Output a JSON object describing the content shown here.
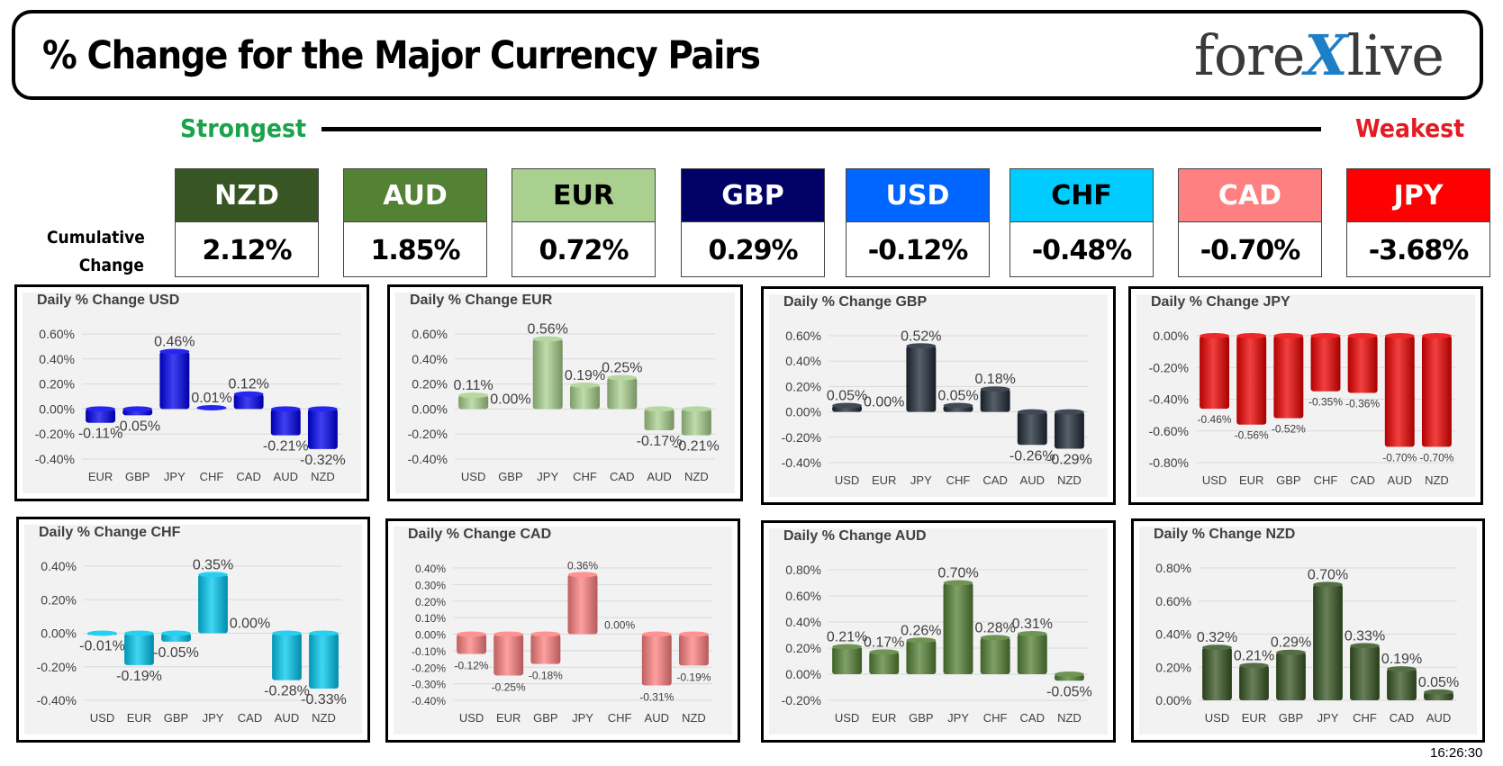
{
  "header": {
    "title": "% Change for the Major Currency Pairs",
    "logo_prefix": "fore",
    "logo_x": "X",
    "logo_suffix": "live"
  },
  "ranking": {
    "strongest_label": "Strongest",
    "weakest_label": "Weakest",
    "cumulative_label_line1": "Cumulative",
    "cumulative_label_line2": "Change",
    "tiles": [
      {
        "currency": "NZD",
        "value": "2.12%",
        "color": "#375623",
        "text_color": "#ffffff"
      },
      {
        "currency": "AUD",
        "value": "1.85%",
        "color": "#548235",
        "text_color": "#ffffff"
      },
      {
        "currency": "EUR",
        "value": "0.72%",
        "color": "#a9d08e",
        "text_color": "#000000"
      },
      {
        "currency": "GBP",
        "value": "0.29%",
        "color": "#000066",
        "text_color": "#ffffff"
      },
      {
        "currency": "USD",
        "value": "-0.12%",
        "color": "#0066ff",
        "text_color": "#ffffff"
      },
      {
        "currency": "CHF",
        "value": "-0.48%",
        "color": "#00ccff",
        "text_color": "#000000"
      },
      {
        "currency": "CAD",
        "value": "-0.70%",
        "color": "#ff8080",
        "text_color": "#ffffff"
      },
      {
        "currency": "JPY",
        "value": "-3.68%",
        "color": "#ff0000",
        "text_color": "#ffffff"
      }
    ]
  },
  "timestamp": "16:26:30",
  "chart_data": [
    {
      "type": "bar",
      "title": "Daily % Change USD",
      "categories": [
        "EUR",
        "GBP",
        "JPY",
        "CHF",
        "CAD",
        "AUD",
        "NZD"
      ],
      "values": [
        -0.11,
        -0.05,
        0.46,
        0.01,
        0.12,
        -0.21,
        -0.32
      ],
      "labels": [
        "-0.11%",
        "-0.05%",
        "0.46%",
        "0.01%",
        "0.12%",
        "-0.21%",
        "-0.32%"
      ],
      "ylim": [
        -0.4,
        0.6
      ],
      "yticks": [
        0.6,
        0.4,
        0.2,
        0.0,
        -0.2,
        -0.4
      ],
      "ytick_labels": [
        "0.60%",
        "0.40%",
        "0.20%",
        "0.00%",
        "-0.20%",
        "-0.40%"
      ],
      "color": "#0000ee"
    },
    {
      "type": "bar",
      "title": "Daily % Change EUR",
      "categories": [
        "USD",
        "GBP",
        "JPY",
        "CHF",
        "CAD",
        "AUD",
        "NZD"
      ],
      "values": [
        0.11,
        0.0,
        0.56,
        0.19,
        0.25,
        -0.17,
        -0.21
      ],
      "labels": [
        "0.11%",
        "0.00%",
        "0.56%",
        "0.19%",
        "0.25%",
        "-0.17%",
        "-0.21%"
      ],
      "ylim": [
        -0.4,
        0.6
      ],
      "yticks": [
        0.6,
        0.4,
        0.2,
        0.0,
        -0.2,
        -0.4
      ],
      "ytick_labels": [
        "0.60%",
        "0.40%",
        "0.20%",
        "0.00%",
        "-0.20%",
        "-0.40%"
      ],
      "color": "#a9d08e"
    },
    {
      "type": "bar",
      "title": "Daily % Change GBP",
      "categories": [
        "USD",
        "EUR",
        "JPY",
        "CHF",
        "CAD",
        "AUD",
        "NZD"
      ],
      "values": [
        0.05,
        0.0,
        0.52,
        0.05,
        0.18,
        -0.26,
        -0.29
      ],
      "labels": [
        "0.05%",
        "0.00%",
        "0.52%",
        "0.05%",
        "0.18%",
        "-0.26%",
        "-0.29%"
      ],
      "ylim": [
        -0.4,
        0.6
      ],
      "yticks": [
        0.6,
        0.4,
        0.2,
        0.0,
        -0.2,
        -0.4
      ],
      "ytick_labels": [
        "0.60%",
        "0.40%",
        "0.20%",
        "0.00%",
        "-0.20%",
        "-0.40%"
      ],
      "color": "#1f2937"
    },
    {
      "type": "bar",
      "title": "Daily % Change JPY",
      "categories": [
        "USD",
        "EUR",
        "GBP",
        "CHF",
        "CAD",
        "AUD",
        "NZD"
      ],
      "values": [
        -0.46,
        -0.56,
        -0.52,
        -0.35,
        -0.36,
        -0.7,
        -0.7
      ],
      "labels": [
        "-0.46%",
        "-0.56%",
        "-0.52%",
        "-0.35%",
        "-0.36%",
        "-0.70%",
        "-0.70%"
      ],
      "ylim": [
        -0.8,
        0.0
      ],
      "yticks": [
        0.0,
        -0.2,
        -0.4,
        -0.6,
        -0.8
      ],
      "ytick_labels": [
        "0.00%",
        "-0.20%",
        "-0.40%",
        "-0.60%",
        "-0.80%"
      ],
      "color": "#ee0000"
    },
    {
      "type": "bar",
      "title": "Daily % Change CHF",
      "categories": [
        "USD",
        "EUR",
        "GBP",
        "JPY",
        "CAD",
        "AUD",
        "NZD"
      ],
      "values": [
        -0.01,
        -0.19,
        -0.05,
        0.35,
        0.0,
        -0.28,
        -0.33
      ],
      "labels": [
        "-0.01%",
        "-0.19%",
        "-0.05%",
        "0.35%",
        "0.00%",
        "-0.28%",
        "-0.33%"
      ],
      "ylim": [
        -0.4,
        0.4
      ],
      "yticks": [
        0.4,
        0.2,
        0.0,
        -0.2,
        -0.4
      ],
      "ytick_labels": [
        "0.40%",
        "0.20%",
        "0.00%",
        "-0.20%",
        "-0.40%"
      ],
      "color": "#00c8f0"
    },
    {
      "type": "bar",
      "title": "Daily % Change CAD",
      "categories": [
        "USD",
        "EUR",
        "GBP",
        "JPY",
        "CHF",
        "AUD",
        "NZD"
      ],
      "values": [
        -0.12,
        -0.25,
        -0.18,
        0.36,
        0.0,
        -0.31,
        -0.19
      ],
      "labels": [
        "-0.12%",
        "-0.25%",
        "-0.18%",
        "0.36%",
        "0.00%",
        "-0.31%",
        "-0.19%"
      ],
      "ylim": [
        -0.4,
        0.4
      ],
      "yticks": [
        0.4,
        0.3,
        0.2,
        0.1,
        0.0,
        -0.1,
        -0.2,
        -0.3,
        -0.4
      ],
      "ytick_labels": [
        "0.40%",
        "0.30%",
        "0.20%",
        "0.10%",
        "0.00%",
        "-0.10%",
        "-0.20%",
        "-0.30%",
        "-0.40%"
      ],
      "color": "#ff8080"
    },
    {
      "type": "bar",
      "title": "Daily % Change AUD",
      "categories": [
        "USD",
        "EUR",
        "GBP",
        "JPY",
        "CHF",
        "CAD",
        "NZD"
      ],
      "values": [
        0.21,
        0.17,
        0.26,
        0.7,
        0.28,
        0.31,
        -0.05
      ],
      "labels": [
        "0.21%",
        "0.17%",
        "0.26%",
        "0.70%",
        "0.28%",
        "0.31%",
        "-0.05%"
      ],
      "ylim": [
        -0.2,
        0.8
      ],
      "yticks": [
        0.8,
        0.6,
        0.4,
        0.2,
        0.0,
        -0.2
      ],
      "ytick_labels": [
        "0.80%",
        "0.60%",
        "0.40%",
        "0.20%",
        "0.00%",
        "-0.20%"
      ],
      "color": "#548235"
    },
    {
      "type": "bar",
      "title": "Daily % Change NZD",
      "categories": [
        "USD",
        "EUR",
        "GBP",
        "JPY",
        "CHF",
        "CAD",
        "AUD"
      ],
      "values": [
        0.32,
        0.21,
        0.29,
        0.7,
        0.33,
        0.19,
        0.05
      ],
      "labels": [
        "0.32%",
        "0.21%",
        "0.29%",
        "0.70%",
        "0.33%",
        "0.19%",
        "0.05%"
      ],
      "ylim": [
        0.0,
        0.8
      ],
      "yticks": [
        0.8,
        0.6,
        0.4,
        0.2,
        0.0
      ],
      "ytick_labels": [
        "0.80%",
        "0.60%",
        "0.40%",
        "0.20%",
        "0.00%"
      ],
      "color": "#375623"
    }
  ]
}
